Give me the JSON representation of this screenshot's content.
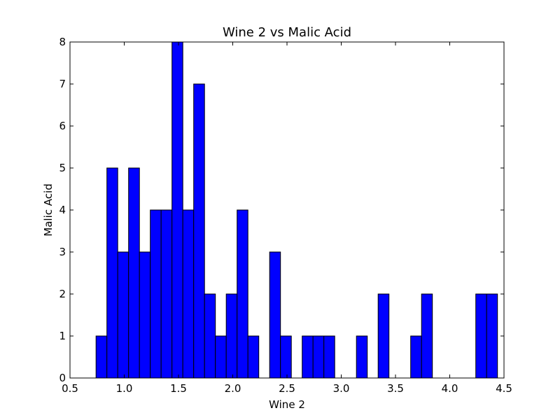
{
  "chart_data": {
    "type": "bar",
    "subtype": "histogram",
    "title": "Wine 2 vs Malic Acid",
    "xlabel": "Wine 2",
    "ylabel": "Malic Acid",
    "xlim": [
      0.5,
      4.5
    ],
    "ylim": [
      0,
      8
    ],
    "xticks": [
      "0.5",
      "1.0",
      "1.5",
      "2.0",
      "2.5",
      "3.0",
      "3.5",
      "4.0",
      "4.5"
    ],
    "yticks": [
      "0",
      "1",
      "2",
      "3",
      "4",
      "5",
      "6",
      "7",
      "8"
    ],
    "grid": false,
    "legend": "none",
    "bar_color": "#0000ff",
    "bin_edges": [
      0.74,
      0.84,
      0.94,
      1.04,
      1.14,
      1.24,
      1.34,
      1.44,
      1.54,
      1.64,
      1.74,
      1.84,
      1.94,
      2.04,
      2.14,
      2.24,
      2.34,
      2.44,
      2.54,
      2.64,
      2.74,
      2.84,
      2.94,
      3.04,
      3.14,
      3.24,
      3.34,
      3.44,
      3.54,
      3.64,
      3.74,
      3.84,
      3.94,
      4.04,
      4.14,
      4.24,
      4.34,
      4.44
    ],
    "counts": [
      1,
      5,
      3,
      5,
      3,
      4,
      4,
      8,
      4,
      7,
      2,
      1,
      2,
      4,
      1,
      0,
      3,
      1,
      0,
      1,
      1,
      1,
      0,
      0,
      1,
      0,
      2,
      0,
      0,
      1,
      2,
      0,
      0,
      0,
      0,
      2,
      2
    ]
  }
}
